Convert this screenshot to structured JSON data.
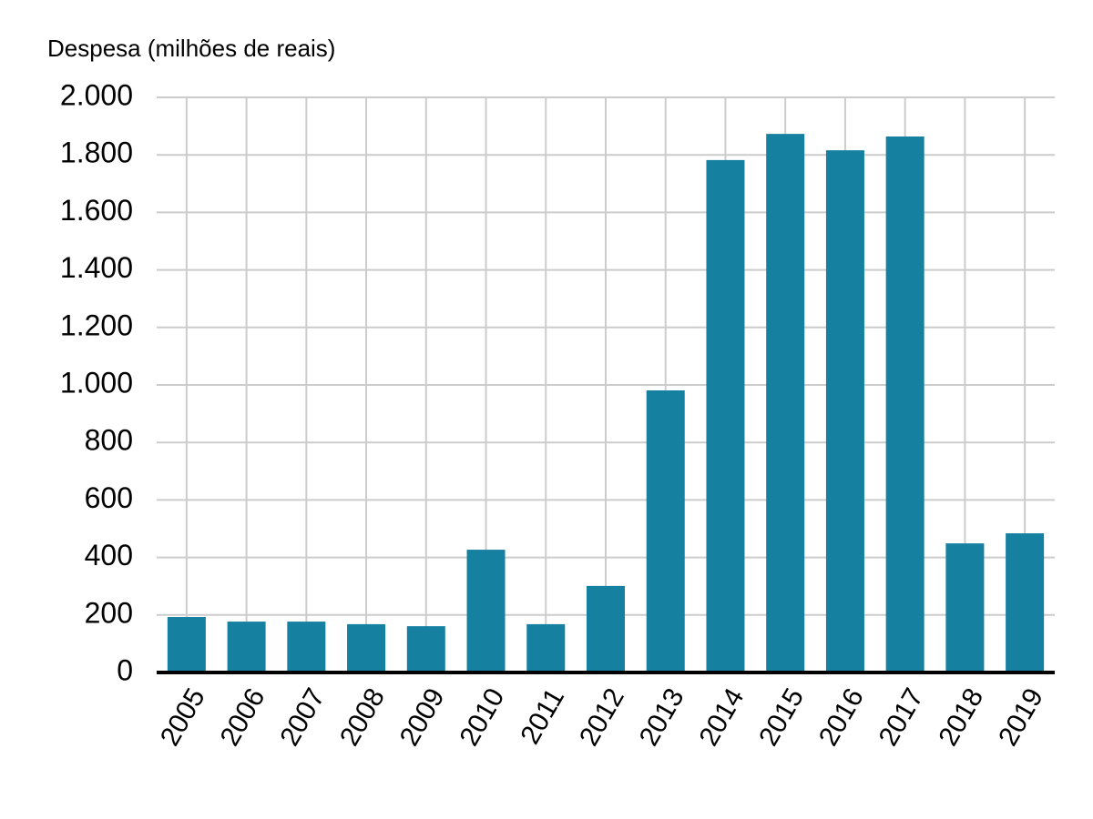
{
  "chart_data": {
    "type": "bar",
    "title": "Despesa (milhões de reais)",
    "categories": [
      "2005",
      "2006",
      "2007",
      "2008",
      "2009",
      "2010",
      "2011",
      "2012",
      "2013",
      "2014",
      "2015",
      "2016",
      "2017",
      "2018",
      "2019"
    ],
    "values": [
      193,
      177,
      177,
      168,
      161,
      427,
      168,
      301,
      981,
      1782,
      1873,
      1816,
      1864,
      449,
      484
    ],
    "color": "#1680a1",
    "ylim": [
      0,
      2000
    ],
    "yticks": [
      0,
      200,
      400,
      600,
      800,
      {
        "value": 1000,
        "label": "1.000"
      },
      {
        "value": 1200,
        "label": "1.200"
      },
      {
        "value": 1400,
        "label": "1.400"
      },
      {
        "value": 1600,
        "label": "1.600"
      },
      {
        "value": 1800,
        "label": "1.800"
      },
      {
        "value": 2000,
        "label": "2.000"
      }
    ],
    "grid": true
  }
}
